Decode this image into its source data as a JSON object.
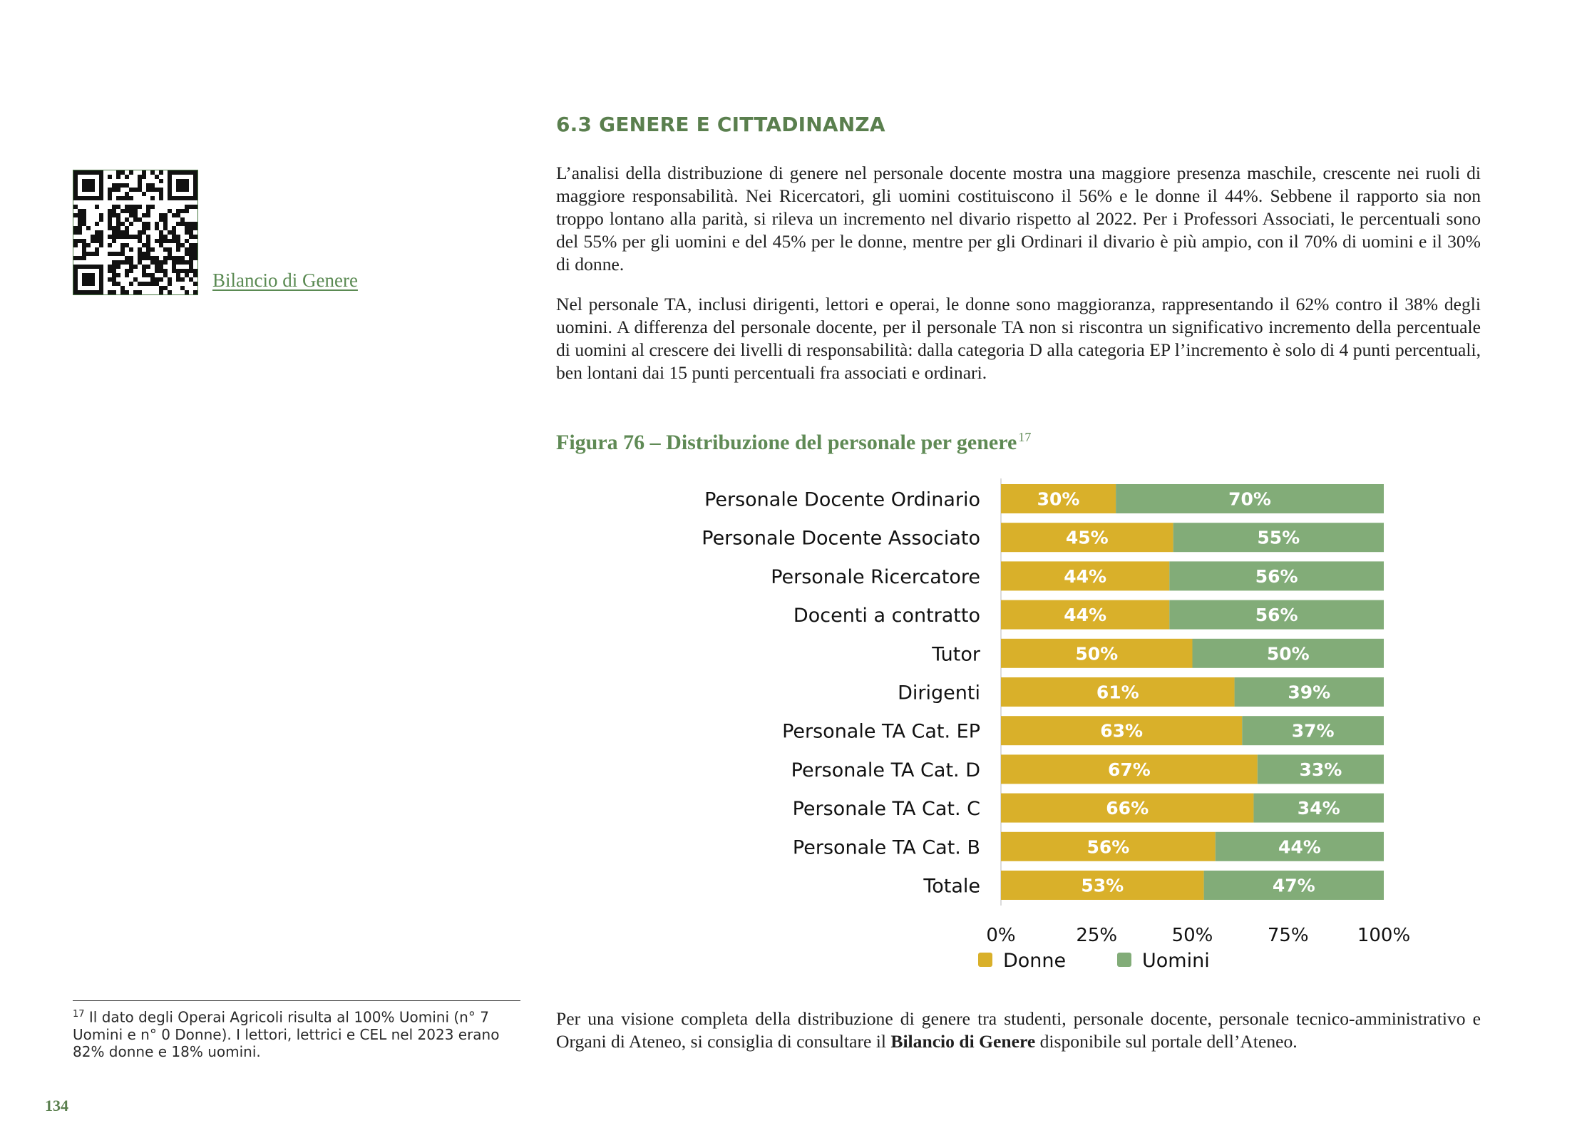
{
  "sidebar": {
    "qr_icon": "qr-code-icon",
    "link_label": "Bilancio di Genere"
  },
  "section": {
    "title": "6.3 GENERE E CITTADINANZA",
    "paragraph1": "L’analisi della distribuzione di genere nel personale docente mostra una maggiore presenza maschile, crescente nei ruoli di maggiore responsabilità. Nei Ricercatori, gli uomini costituiscono il 56% e le donne il 44%. Sebbene il rapporto sia non troppo lontano alla parità, si rileva un incremento nel divario rispetto al 2022. Per i Professori Associati, le percentuali sono del 55% per gli uomini e del 45% per le donne, mentre per gli Ordinari il divario è più ampio, con il 70% di uomini e il 30% di donne.",
    "paragraph2": "Nel personale TA, inclusi dirigenti, lettori e operai, le donne sono maggioranza, rappresentando il 62% contro il 38% degli uomini. A differenza del personale docente, per il personale TA non si riscontra un significativo incremento della percentuale di uomini al crescere dei livelli di responsabilità: dalla categoria D alla categoria EP l’incremento è solo di 4 punti percentuali, ben lontani dai 15 punti percentuali fra associati e ordinari."
  },
  "figure": {
    "caption": "Figura 76 – Distribuzione del personale per genere",
    "footnote_ref": "17"
  },
  "chart_data": {
    "type": "bar",
    "orientation": "horizontal",
    "stacked": true,
    "percent_stacked": true,
    "categories": [
      "Personale Docente Ordinario",
      "Personale Docente Associato",
      "Personale Ricercatore",
      "Docenti a contratto",
      "Tutor",
      "Dirigenti",
      "Personale TA Cat. EP",
      "Personale TA Cat. D",
      "Personale TA Cat. C",
      "Personale TA Cat. B",
      "Totale"
    ],
    "series": [
      {
        "name": "Donne",
        "color": "#D9B02A",
        "values": [
          30,
          45,
          44,
          44,
          50,
          61,
          63,
          67,
          66,
          56,
          53
        ]
      },
      {
        "name": "Uomini",
        "color": "#82AC78",
        "values": [
          70,
          55,
          56,
          56,
          50,
          39,
          37,
          33,
          34,
          44,
          47
        ]
      }
    ],
    "xticks": [
      "0%",
      "25%",
      "50%",
      "75%",
      "100%"
    ],
    "xlim": [
      0,
      100
    ],
    "legend": "bottom",
    "grid": false
  },
  "footnote": {
    "number": "17",
    "text": " Il dato degli Operai Agricoli risulta al 100% Uomini (n° 7 Uomini e n° 0 Donne). I lettori, lettrici e CEL nel 2023 erano 82% donne e 18% uomini."
  },
  "closing": {
    "before": "Per una visione completa della distribuzione di genere tra studenti, personale docente, personale tecnico-amministrativo e Organi di Ateneo, si consiglia di consultare il ",
    "bold": "Bilancio di Genere",
    "after": " disponibile sul portale dell’Ateneo."
  },
  "page_number": "134"
}
